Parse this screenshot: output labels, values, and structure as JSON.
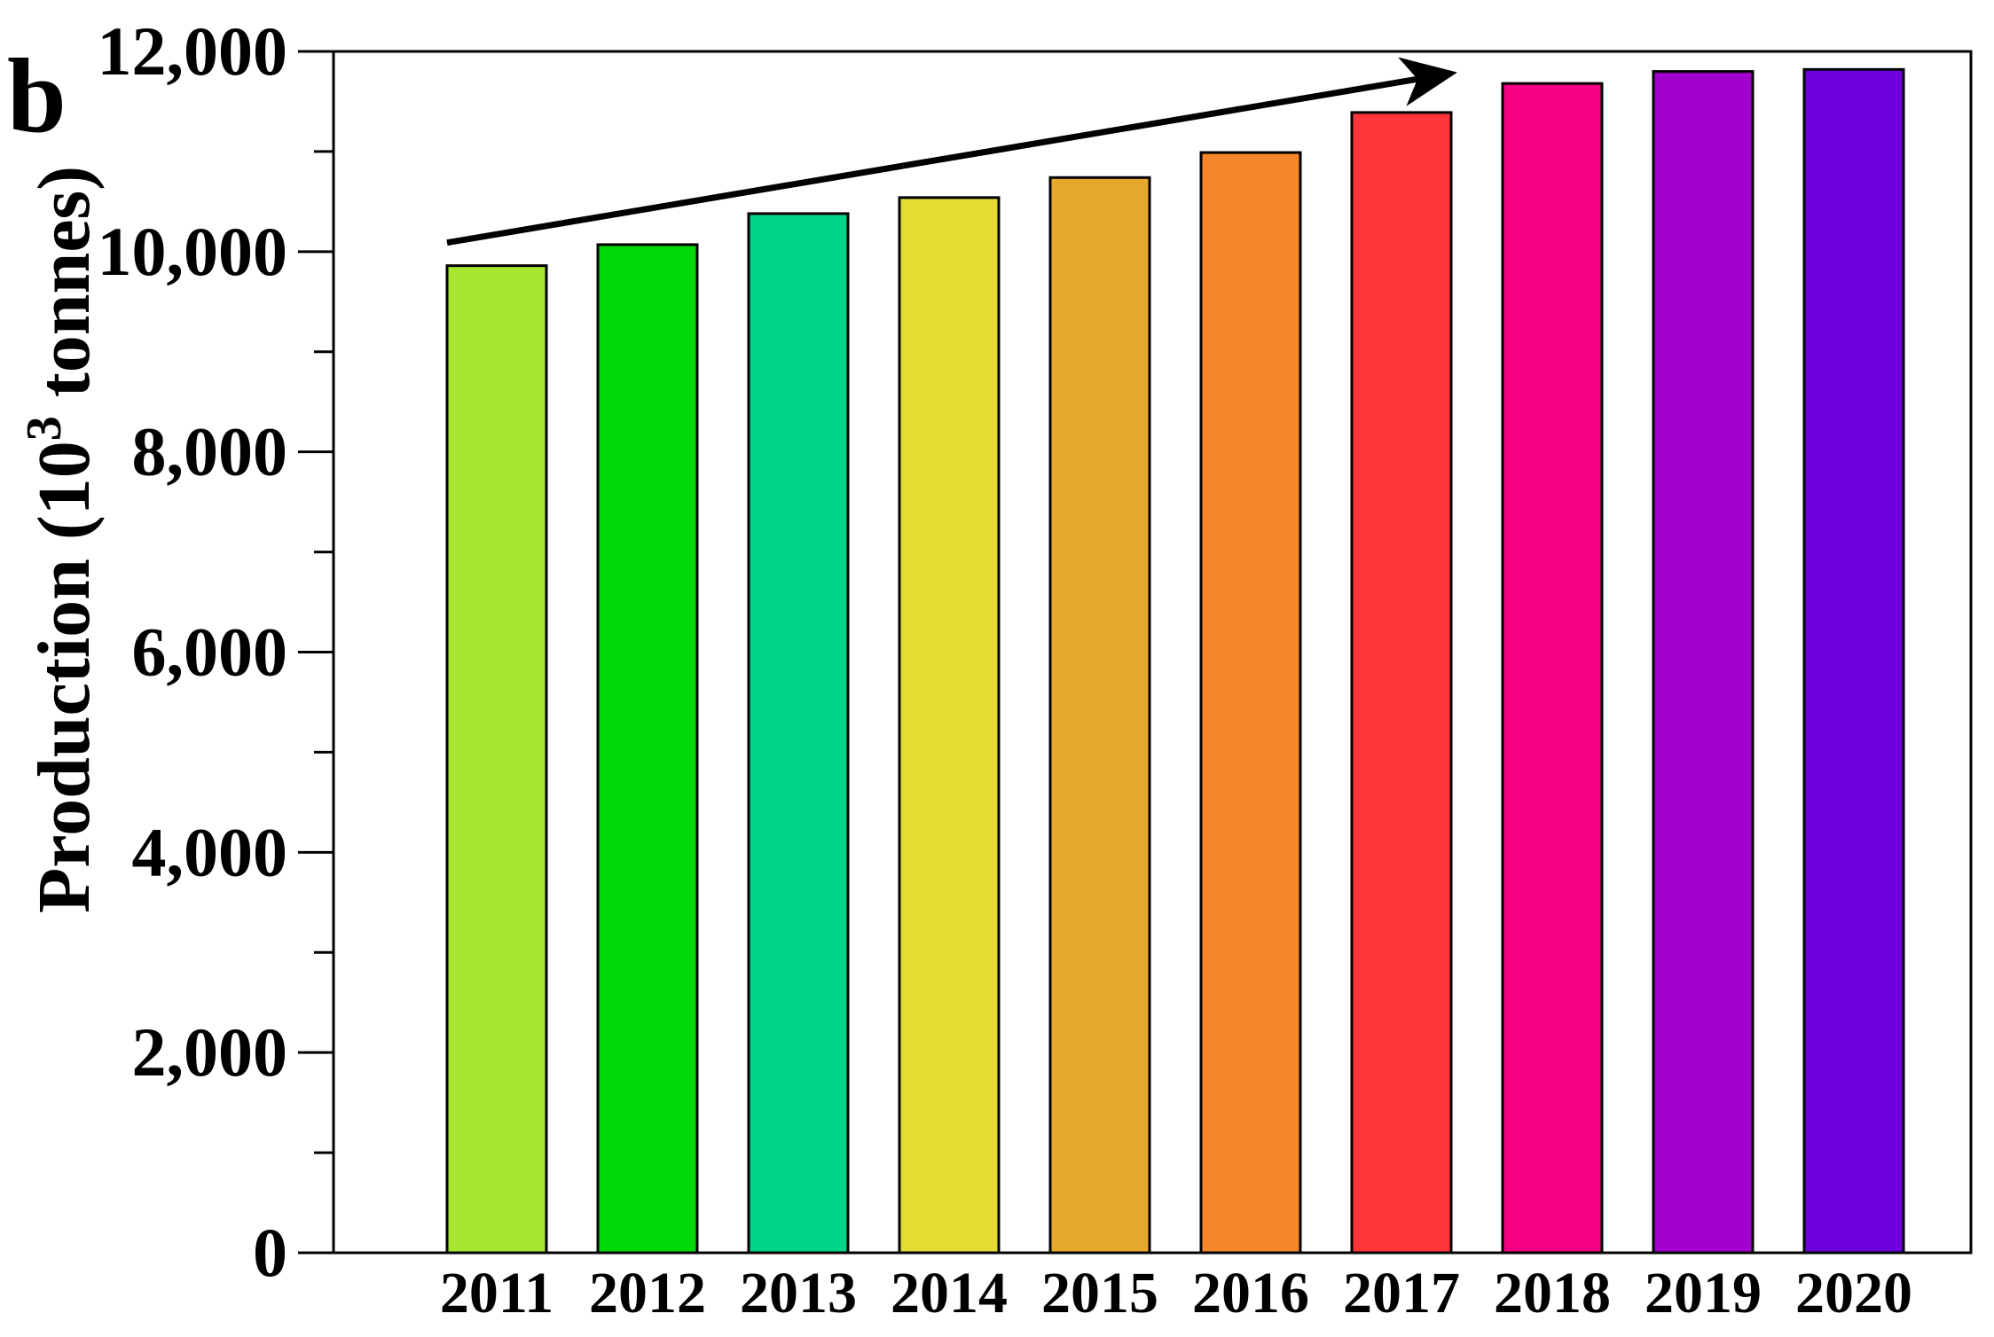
{
  "panel_label": "b",
  "chart_data": {
    "type": "bar",
    "categories": [
      "2011",
      "2012",
      "2013",
      "2014",
      "2015",
      "2016",
      "2017",
      "2018",
      "2019",
      "2020"
    ],
    "values": [
      9860,
      10070,
      10380,
      10540,
      10740,
      10990,
      11390,
      11680,
      11800,
      11820
    ],
    "colors": [
      "#a6e631",
      "#00d90a",
      "#00d487",
      "#e5dc32",
      "#e6a92c",
      "#f5862b",
      "#fe363a",
      "#f50083",
      "#a300cf",
      "#6e00df"
    ],
    "title": "",
    "xlabel": "",
    "ylabel_main": "Production (10",
    "ylabel_sup": "3",
    "ylabel_tail": " tonnes)",
    "ylim": [
      0,
      12000
    ],
    "yticks": [
      0,
      2000,
      4000,
      6000,
      8000,
      10000,
      12000
    ],
    "ytick_labels": [
      "0",
      "2,000",
      "4,000",
      "6,000",
      "8,000",
      "10,000",
      "12,000"
    ],
    "annotations": [
      {
        "type": "trend-arrow",
        "from_category": "2011",
        "to_category": "2017",
        "from_value": 10090,
        "to_value": 11780
      }
    ],
    "grid": false,
    "legend": "none"
  }
}
